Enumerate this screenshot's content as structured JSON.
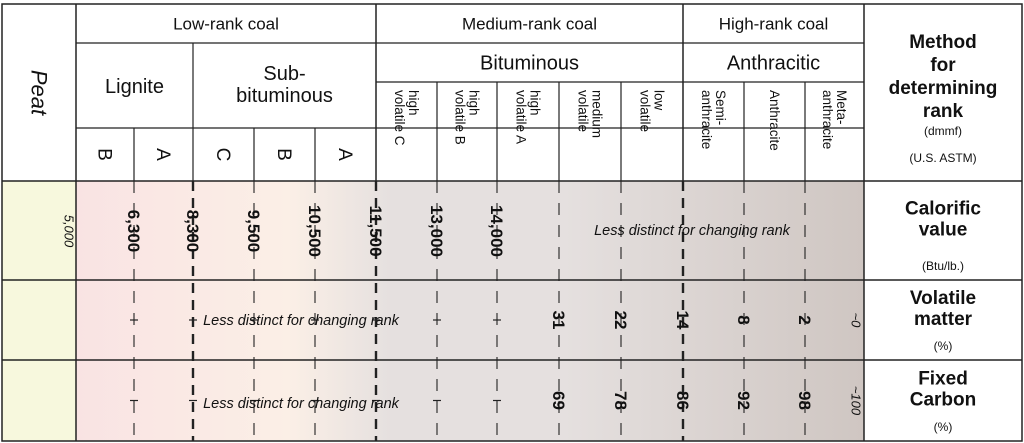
{
  "header": {
    "groups": [
      {
        "label": "Low-rank coal"
      },
      {
        "label": "Medium-rank coal"
      },
      {
        "label": "High-rank coal"
      }
    ],
    "peat": "Peat",
    "subgroups": [
      {
        "label": "Lignite"
      },
      {
        "label": "Sub-\nbituminous"
      },
      {
        "label": "Bituminous"
      },
      {
        "label": "Anthracitic"
      }
    ],
    "ranks": [
      {
        "label": "B"
      },
      {
        "label": "A"
      },
      {
        "label": "C"
      },
      {
        "label": "B"
      },
      {
        "label": "A"
      },
      {
        "label": "high\nvolatile C"
      },
      {
        "label": "high\nvolatile B"
      },
      {
        "label": "high\nvolatile A"
      },
      {
        "label": "medium\nvolatile"
      },
      {
        "label": "low\nvolatile"
      },
      {
        "label": "Semi-\nanthracite"
      },
      {
        "label": "Anthracite"
      },
      {
        "label": "Meta-\nanthracite"
      }
    ],
    "method": {
      "title": "Method\nfor\ndetermining\nrank",
      "basis": "(dmmf)",
      "standard": "(U.S. ASTM)"
    }
  },
  "rows": [
    {
      "title": "Calorific\nvalue",
      "unit": "(Btu/lb.)",
      "note": "Less distinct for changing rank",
      "values": [
        {
          "label": "5,000",
          "bold": false,
          "approx": false
        },
        {
          "label": "6,300",
          "bold": true,
          "approx": false
        },
        {
          "label": "8,300",
          "bold": true,
          "approx": false
        },
        {
          "label": "9,500",
          "bold": true,
          "approx": false
        },
        {
          "label": "10,500",
          "bold": true,
          "approx": false
        },
        {
          "label": "11,500",
          "bold": true,
          "approx": false
        },
        {
          "label": "13,000",
          "bold": true,
          "approx": false
        },
        {
          "label": "14,000",
          "bold": true,
          "approx": false
        }
      ]
    },
    {
      "title": "Volatile\nmatter",
      "unit": "(%)",
      "note": "Less distinct for changing rank",
      "values": [
        {
          "label": "31",
          "bold": true,
          "approx": false
        },
        {
          "label": "22",
          "bold": true,
          "approx": false
        },
        {
          "label": "14",
          "bold": true,
          "approx": false
        },
        {
          "label": "8",
          "bold": true,
          "approx": false
        },
        {
          "label": "2",
          "bold": true,
          "approx": false
        },
        {
          "label": "~0",
          "bold": false,
          "approx": true
        }
      ]
    },
    {
      "title": "Fixed\nCarbon",
      "unit": "(%)",
      "note": "Less distinct for changing rank",
      "values": [
        {
          "label": "69",
          "bold": true,
          "approx": false
        },
        {
          "label": "78",
          "bold": true,
          "approx": false
        },
        {
          "label": "86",
          "bold": true,
          "approx": false
        },
        {
          "label": "92",
          "bold": true,
          "approx": false
        },
        {
          "label": "98",
          "bold": true,
          "approx": false
        },
        {
          "label": "~100",
          "bold": false,
          "approx": true
        }
      ]
    }
  ],
  "colors": {
    "peat_fill": "#f7f8dd",
    "lignite_fill": "#f9e3e3",
    "subbituminous_fill": "#fbefe6",
    "bituminous_fill": "#e5e0df",
    "anthracitic_fill": "#cfc6c2",
    "grid": "#222222"
  }
}
